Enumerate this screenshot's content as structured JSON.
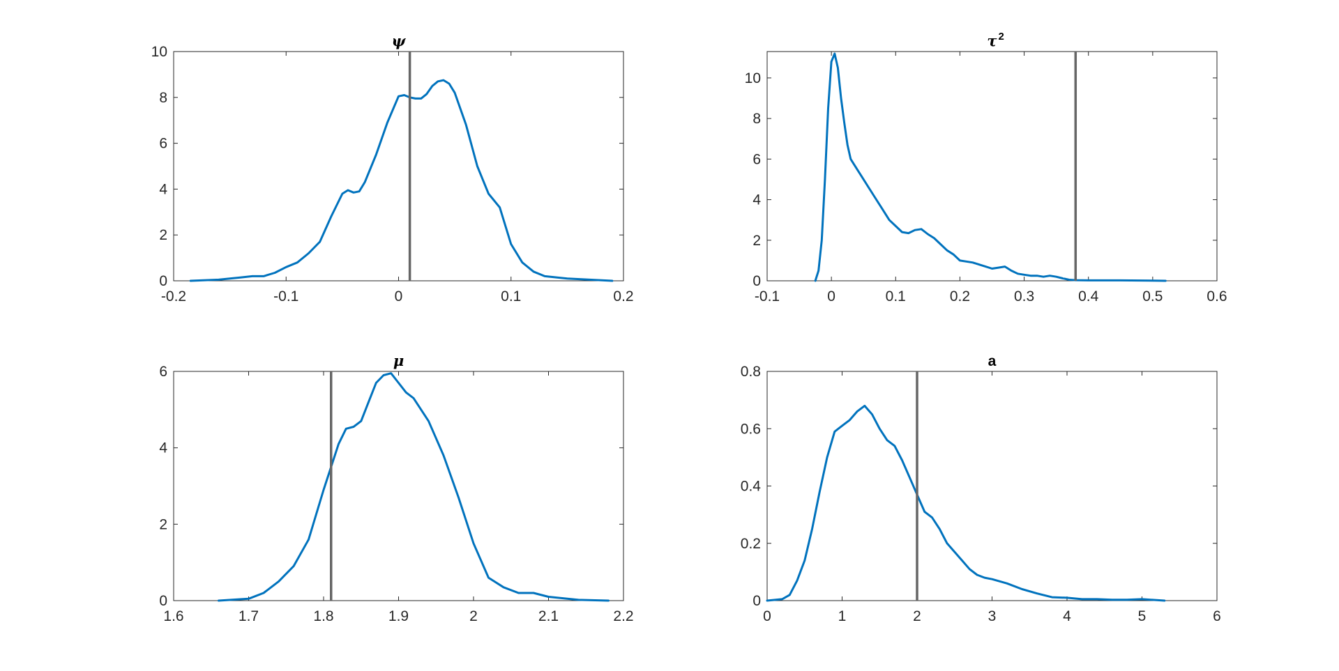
{
  "colors": {
    "density": "#0072BD",
    "reference_line": "#666666",
    "axes": "#262626"
  },
  "chart_data": [
    {
      "type": "line",
      "title": "ψ",
      "xlim": [
        -0.2,
        0.2
      ],
      "ylim": [
        0,
        10
      ],
      "xticks": [
        -0.2,
        -0.1,
        0,
        0.1,
        0.2
      ],
      "xtick_labels": [
        "-0.2",
        "-0.1",
        "0",
        "0.1",
        "0.2"
      ],
      "yticks": [
        0,
        2,
        4,
        6,
        8,
        10
      ],
      "ytick_labels": [
        "0",
        "2",
        "4",
        "6",
        "8",
        "10"
      ],
      "reference_x": 0.01,
      "grid": false,
      "series": [
        {
          "x": [
            -0.185,
            -0.16,
            -0.14,
            -0.13,
            -0.12,
            -0.11,
            -0.1,
            -0.09,
            -0.08,
            -0.07,
            -0.06,
            -0.05,
            -0.045,
            -0.04,
            -0.035,
            -0.03,
            -0.02,
            -0.01,
            0,
            0.005,
            0.01,
            0.015,
            0.02,
            0.025,
            0.03,
            0.035,
            0.04,
            0.045,
            0.05,
            0.06,
            0.07,
            0.08,
            0.09,
            0.1,
            0.11,
            0.12,
            0.13,
            0.15,
            0.17,
            0.19
          ],
          "y": [
            0,
            0.05,
            0.15,
            0.2,
            0.2,
            0.35,
            0.6,
            0.8,
            1.2,
            1.7,
            2.8,
            3.8,
            3.95,
            3.85,
            3.9,
            4.3,
            5.5,
            6.9,
            8.05,
            8.1,
            8.0,
            7.95,
            7.95,
            8.15,
            8.5,
            8.7,
            8.75,
            8.6,
            8.2,
            6.8,
            5.0,
            3.8,
            3.2,
            1.6,
            0.8,
            0.4,
            0.2,
            0.1,
            0.05,
            0.0
          ]
        }
      ]
    },
    {
      "type": "line",
      "title": "τ",
      "title_superscript": "2",
      "xlim": [
        -0.1,
        0.6
      ],
      "ylim": [
        0,
        11.3
      ],
      "xticks": [
        -0.1,
        0,
        0.1,
        0.2,
        0.3,
        0.4,
        0.5,
        0.6
      ],
      "xtick_labels": [
        "-0.1",
        "0",
        "0.1",
        "0.2",
        "0.3",
        "0.4",
        "0.5",
        "0.6"
      ],
      "yticks": [
        0,
        2,
        4,
        6,
        8,
        10
      ],
      "ytick_labels": [
        "0",
        "2",
        "4",
        "6",
        "8",
        "10"
      ],
      "reference_x": 0.38,
      "grid": false,
      "series": [
        {
          "x": [
            -0.025,
            -0.02,
            -0.015,
            -0.01,
            -0.005,
            0,
            0.005,
            0.01,
            0.015,
            0.02,
            0.025,
            0.03,
            0.04,
            0.05,
            0.06,
            0.07,
            0.08,
            0.09,
            0.1,
            0.11,
            0.12,
            0.13,
            0.14,
            0.15,
            0.16,
            0.17,
            0.18,
            0.19,
            0.2,
            0.21,
            0.22,
            0.23,
            0.24,
            0.25,
            0.26,
            0.27,
            0.28,
            0.29,
            0.3,
            0.31,
            0.32,
            0.33,
            0.34,
            0.35,
            0.36,
            0.37,
            0.38,
            0.4,
            0.45,
            0.5,
            0.52
          ],
          "y": [
            0,
            0.5,
            2.0,
            5.0,
            8.5,
            10.8,
            11.2,
            10.5,
            9.0,
            7.8,
            6.7,
            6.0,
            5.5,
            5.0,
            4.5,
            4.0,
            3.5,
            3.0,
            2.7,
            2.4,
            2.35,
            2.5,
            2.55,
            2.3,
            2.1,
            1.8,
            1.5,
            1.3,
            1.0,
            0.95,
            0.9,
            0.8,
            0.7,
            0.6,
            0.65,
            0.7,
            0.5,
            0.35,
            0.3,
            0.25,
            0.25,
            0.2,
            0.25,
            0.2,
            0.12,
            0.05,
            0.03,
            0.02,
            0.02,
            0.01,
            0.0
          ]
        }
      ]
    },
    {
      "type": "line",
      "title": "μ",
      "xlim": [
        1.6,
        2.2
      ],
      "ylim": [
        0,
        6
      ],
      "xticks": [
        1.6,
        1.7,
        1.8,
        1.9,
        2.0,
        2.1,
        2.2
      ],
      "xtick_labels": [
        "1.6",
        "1.7",
        "1.8",
        "1.9",
        "2",
        "2.1",
        "2.2"
      ],
      "yticks": [
        0,
        2,
        4,
        6
      ],
      "ytick_labels": [
        "0",
        "2",
        "4",
        "6"
      ],
      "reference_x": 1.81,
      "grid": false,
      "series": [
        {
          "x": [
            1.66,
            1.7,
            1.72,
            1.74,
            1.76,
            1.78,
            1.8,
            1.82,
            1.83,
            1.84,
            1.85,
            1.86,
            1.87,
            1.88,
            1.89,
            1.9,
            1.91,
            1.92,
            1.94,
            1.96,
            1.98,
            2.0,
            2.02,
            2.04,
            2.06,
            2.08,
            2.1,
            2.14,
            2.18
          ],
          "y": [
            0,
            0.05,
            0.2,
            0.5,
            0.9,
            1.6,
            2.9,
            4.1,
            4.5,
            4.55,
            4.7,
            5.2,
            5.7,
            5.9,
            5.95,
            5.7,
            5.45,
            5.3,
            4.7,
            3.8,
            2.7,
            1.5,
            0.6,
            0.35,
            0.2,
            0.2,
            0.1,
            0.02,
            0.0
          ]
        }
      ]
    },
    {
      "type": "line",
      "title": "a",
      "xlim": [
        0,
        6
      ],
      "ylim": [
        0,
        0.8
      ],
      "xticks": [
        0,
        1,
        2,
        3,
        4,
        5,
        6
      ],
      "xtick_labels": [
        "0",
        "1",
        "2",
        "3",
        "4",
        "5",
        "6"
      ],
      "yticks": [
        0,
        0.2,
        0.4,
        0.6,
        0.8
      ],
      "ytick_labels": [
        "0",
        "0.2",
        "0.4",
        "0.6",
        "0.8"
      ],
      "reference_x": 2,
      "grid": false,
      "series": [
        {
          "x": [
            0,
            0.2,
            0.3,
            0.4,
            0.5,
            0.6,
            0.7,
            0.8,
            0.9,
            1.0,
            1.1,
            1.2,
            1.3,
            1.4,
            1.5,
            1.6,
            1.7,
            1.8,
            1.9,
            2.0,
            2.1,
            2.2,
            2.3,
            2.4,
            2.5,
            2.6,
            2.7,
            2.8,
            2.9,
            3.0,
            3.2,
            3.4,
            3.6,
            3.8,
            4.0,
            4.2,
            4.4,
            4.6,
            4.8,
            5.0,
            5.3
          ],
          "y": [
            0,
            0.005,
            0.02,
            0.07,
            0.14,
            0.25,
            0.38,
            0.5,
            0.59,
            0.61,
            0.63,
            0.66,
            0.68,
            0.65,
            0.6,
            0.56,
            0.54,
            0.49,
            0.43,
            0.37,
            0.31,
            0.29,
            0.25,
            0.2,
            0.17,
            0.14,
            0.11,
            0.09,
            0.08,
            0.075,
            0.06,
            0.04,
            0.025,
            0.012,
            0.01,
            0.005,
            0.005,
            0.003,
            0.003,
            0.005,
            0.0
          ]
        }
      ]
    }
  ]
}
